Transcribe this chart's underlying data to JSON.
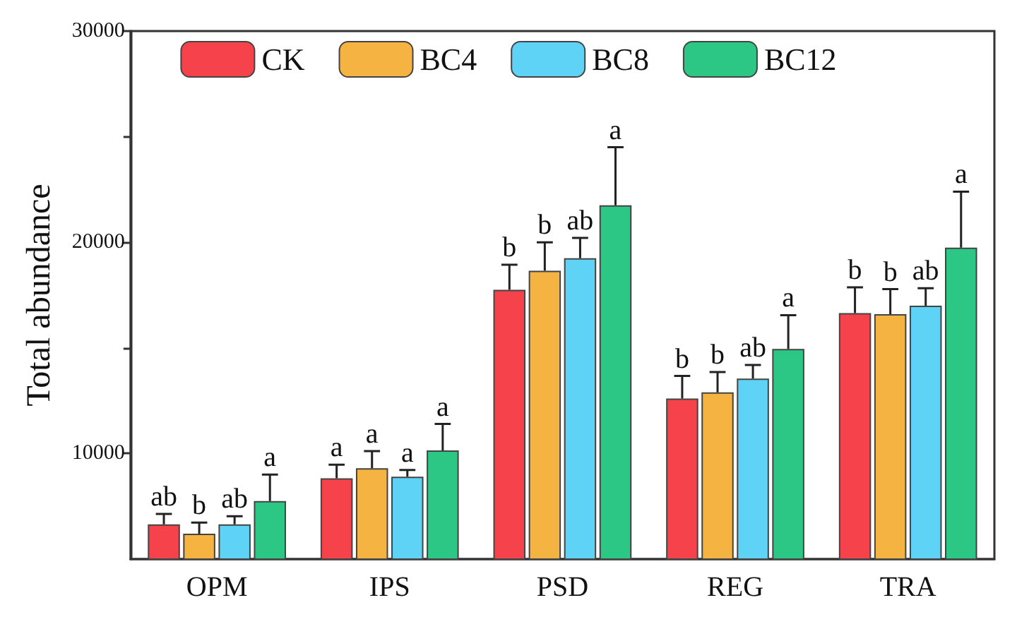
{
  "chart_data": {
    "type": "bar",
    "ylabel": "Total abundance",
    "categories": [
      "OPM",
      "IPS",
      "PSD",
      "REG",
      "TRA"
    ],
    "series": [
      {
        "name": "CK",
        "color": "#f5424b",
        "values": [
          6650,
          8830,
          17750,
          12600,
          16650
        ],
        "errors": [
          [
            6650,
            7140
          ],
          [
            8830,
            9470
          ],
          [
            17750,
            18940
          ],
          [
            12600,
            13670
          ],
          [
            16650,
            17870
          ]
        ]
      },
      {
        "name": "BC4",
        "color": "#f5b342",
        "values": [
          6200,
          9300,
          18650,
          12900,
          16600
        ],
        "errors": [
          [
            6200,
            6730
          ],
          [
            9300,
            10110
          ],
          [
            18650,
            20000
          ],
          [
            12900,
            13860
          ],
          [
            16600,
            17780
          ]
        ]
      },
      {
        "name": "BC8",
        "color": "#5fd3f5",
        "values": [
          6650,
          8900,
          19250,
          13550,
          17000
        ],
        "errors": [
          [
            6650,
            7030
          ],
          [
            8900,
            9220
          ],
          [
            19250,
            20210
          ],
          [
            13550,
            14190
          ],
          [
            17000,
            17830
          ]
        ]
      },
      {
        "name": "BC12",
        "color": "#2dc785",
        "values": [
          7750,
          10150,
          21750,
          14950,
          19750
        ],
        "errors": [
          [
            7750,
            9000
          ],
          [
            10150,
            11400
          ],
          [
            21750,
            24500
          ],
          [
            14950,
            16550
          ],
          [
            19750,
            22400
          ]
        ]
      }
    ],
    "ylim": [
      5000,
      30000
    ],
    "yticks": [
      10000,
      {
        "value": 15000,
        "label": null
      },
      20000,
      {
        "value": 25000,
        "label": null
      },
      30000
    ],
    "annotations": [
      "ab",
      "b",
      "ab",
      "a",
      "a",
      "a",
      "a",
      "a",
      "b",
      "b",
      "ab",
      "a",
      "b",
      "b",
      "ab",
      "a",
      "b",
      "b",
      "ab",
      "a"
    ],
    "grid": false,
    "legend": "top"
  }
}
